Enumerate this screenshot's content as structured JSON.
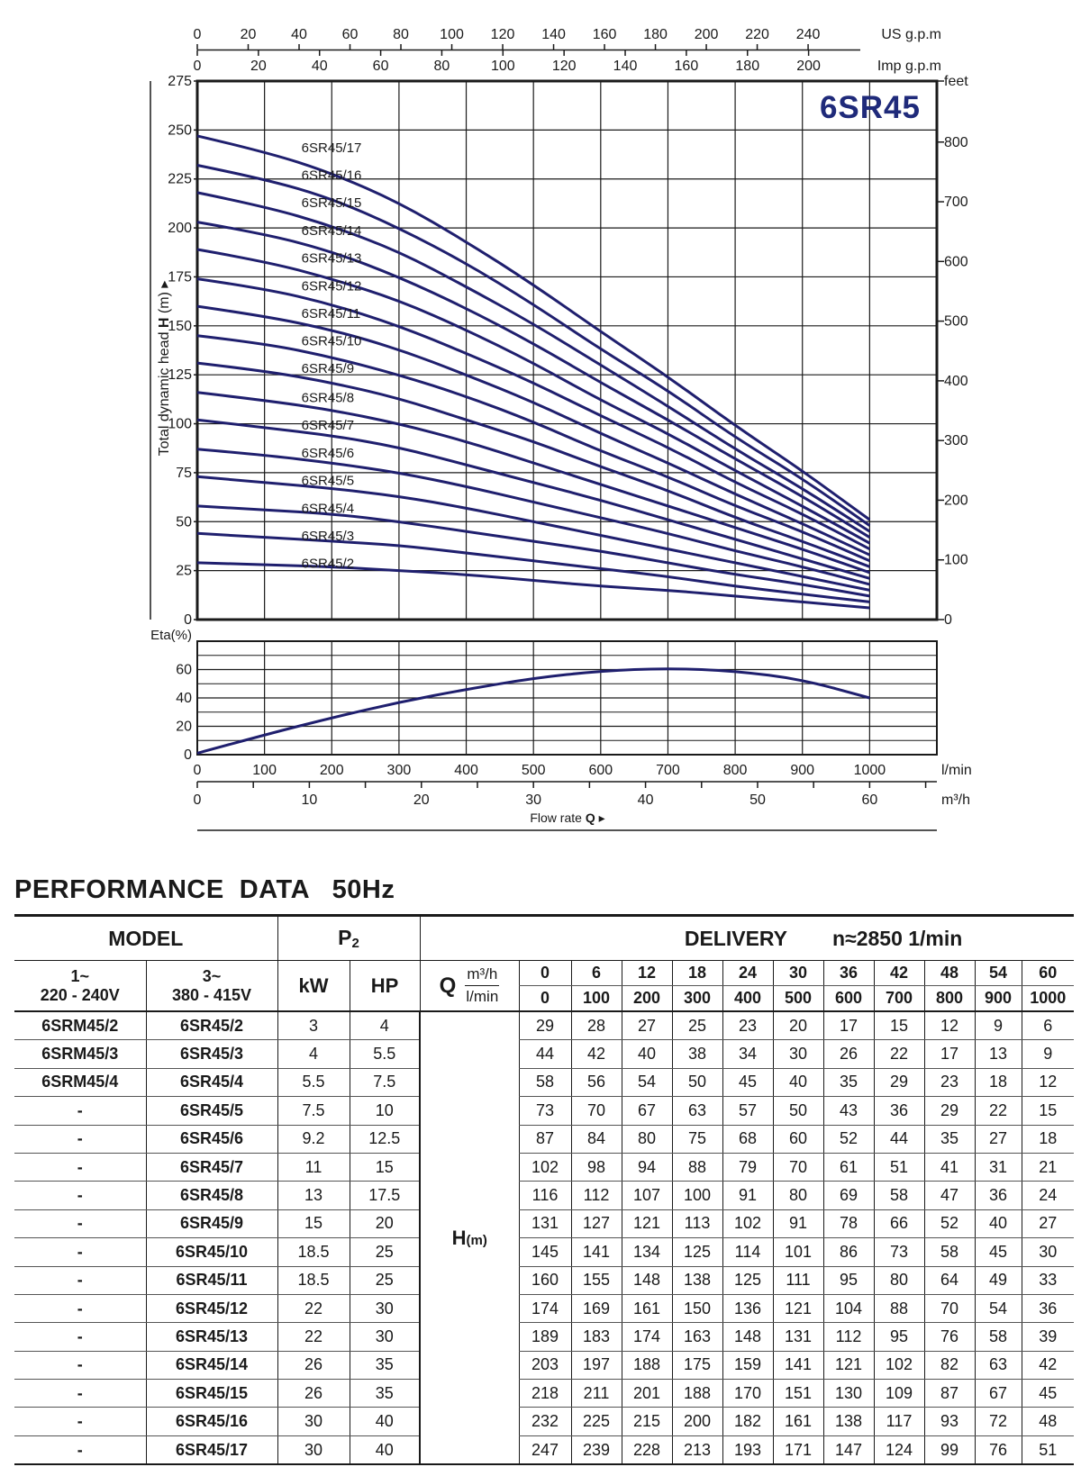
{
  "chart_data": {
    "type": "line",
    "title": "6SR45",
    "head_chart": {
      "ylabel_prefix": "Total dynamic head",
      "ylabel_symbol": "H",
      "ylabel_unit": "(m)",
      "y_ticks": [
        0,
        25,
        50,
        75,
        100,
        125,
        150,
        175,
        200,
        225,
        250,
        275
      ],
      "ylim": [
        0,
        275
      ],
      "right_unit": "feet",
      "right_ticks": [
        0,
        100,
        200,
        300,
        400,
        500,
        600,
        700,
        800
      ],
      "xlim_lmin": [
        0,
        1100
      ],
      "x_lmin": [
        0,
        100,
        200,
        300,
        400,
        500,
        600,
        700,
        800,
        900,
        1000
      ],
      "grid": true,
      "series": [
        {
          "name": "6SR45/2",
          "values": [
            29,
            28,
            27,
            25,
            23,
            20,
            17,
            15,
            12,
            9,
            6
          ]
        },
        {
          "name": "6SR45/3",
          "values": [
            44,
            42,
            40,
            38,
            34,
            30,
            26,
            22,
            17,
            13,
            9
          ]
        },
        {
          "name": "6SR45/4",
          "values": [
            58,
            56,
            54,
            50,
            45,
            40,
            35,
            29,
            23,
            18,
            12
          ]
        },
        {
          "name": "6SR45/5",
          "values": [
            73,
            70,
            67,
            63,
            57,
            50,
            43,
            36,
            29,
            22,
            15
          ]
        },
        {
          "name": "6SR45/6",
          "values": [
            87,
            84,
            80,
            75,
            68,
            60,
            52,
            44,
            35,
            27,
            18
          ]
        },
        {
          "name": "6SR45/7",
          "values": [
            102,
            98,
            94,
            88,
            79,
            70,
            61,
            51,
            41,
            31,
            21
          ]
        },
        {
          "name": "6SR45/8",
          "values": [
            116,
            112,
            107,
            100,
            91,
            80,
            69,
            58,
            47,
            36,
            24
          ]
        },
        {
          "name": "6SR45/9",
          "values": [
            131,
            127,
            121,
            113,
            102,
            91,
            78,
            66,
            52,
            40,
            27
          ]
        },
        {
          "name": "6SR45/10",
          "values": [
            145,
            141,
            134,
            125,
            114,
            101,
            86,
            73,
            58,
            45,
            30
          ]
        },
        {
          "name": "6SR45/11",
          "values": [
            160,
            155,
            148,
            138,
            125,
            111,
            95,
            80,
            64,
            49,
            33
          ]
        },
        {
          "name": "6SR45/12",
          "values": [
            174,
            169,
            161,
            150,
            136,
            121,
            104,
            88,
            70,
            54,
            36
          ]
        },
        {
          "name": "6SR45/13",
          "values": [
            189,
            183,
            174,
            163,
            148,
            131,
            112,
            95,
            76,
            58,
            39
          ]
        },
        {
          "name": "6SR45/14",
          "values": [
            203,
            197,
            188,
            175,
            159,
            141,
            121,
            102,
            82,
            63,
            42
          ]
        },
        {
          "name": "6SR45/15",
          "values": [
            218,
            211,
            201,
            188,
            170,
            151,
            130,
            109,
            87,
            67,
            45
          ]
        },
        {
          "name": "6SR45/16",
          "values": [
            232,
            225,
            215,
            200,
            182,
            161,
            138,
            117,
            93,
            72,
            48
          ]
        },
        {
          "name": "6SR45/17",
          "values": [
            247,
            239,
            228,
            213,
            193,
            171,
            147,
            124,
            99,
            76,
            51
          ]
        }
      ]
    },
    "eta_chart": {
      "ylabel": "Eta(%)",
      "y_ticks": [
        0,
        20,
        40,
        60
      ],
      "ylim": [
        0,
        80
      ],
      "series": [
        {
          "x": [
            0,
            100,
            200,
            300,
            400,
            500,
            600,
            700,
            800,
            900,
            1000
          ],
          "values": [
            1,
            14,
            26,
            37,
            46,
            54,
            59,
            61,
            59,
            53,
            40
          ]
        }
      ]
    },
    "top_axes": {
      "us_label": "US g.p.m",
      "us_ticks": [
        0,
        20,
        40,
        60,
        80,
        100,
        120,
        140,
        160,
        180,
        200,
        220,
        240
      ],
      "imp_label": "Imp g.p.m",
      "imp_ticks": [
        0,
        20,
        40,
        60,
        80,
        100,
        120,
        140,
        160,
        180,
        200
      ]
    },
    "bottom_axes": {
      "lmin_label": "l/min",
      "lmin_ticks": [
        0,
        100,
        200,
        300,
        400,
        500,
        600,
        700,
        800,
        900,
        1000
      ],
      "m3h_label": "m³/h",
      "m3h_ticks": [
        0,
        10,
        20,
        30,
        40,
        50,
        60
      ],
      "xlabel_text": "Flow rate",
      "xlabel_symbol": "Q"
    }
  },
  "table": {
    "title": "PERFORMANCE  DATA   50Hz",
    "model_header": "MODEL",
    "p2_header": "P",
    "p2_sub": "2",
    "delivery_header": "DELIVERY",
    "speed_header": "n≈2850 1/min",
    "col_1ph_line1": "1~",
    "col_1ph_line2": "220 - 240V",
    "col_3ph_line1": "3~",
    "col_3ph_line2": "380 - 415V",
    "kw_header": "kW",
    "hp_header": "HP",
    "q_symbol": "Q",
    "m3h_unit": "m³/h",
    "lmin_unit": "l/min",
    "q_m3h": [
      "0",
      "6",
      "12",
      "18",
      "24",
      "30",
      "36",
      "42",
      "48",
      "54",
      "60"
    ],
    "q_lmin": [
      "0",
      "100",
      "200",
      "300",
      "400",
      "500",
      "600",
      "700",
      "800",
      "900",
      "1000"
    ],
    "h_symbol": "H",
    "h_unit": "(m)",
    "rows": [
      {
        "m1": "6SRM45/2",
        "m3": "6SR45/2",
        "kw": "3",
        "hp": "4",
        "h": [
          "29",
          "28",
          "27",
          "25",
          "23",
          "20",
          "17",
          "15",
          "12",
          "9",
          "6"
        ]
      },
      {
        "m1": "6SRM45/3",
        "m3": "6SR45/3",
        "kw": "4",
        "hp": "5.5",
        "h": [
          "44",
          "42",
          "40",
          "38",
          "34",
          "30",
          "26",
          "22",
          "17",
          "13",
          "9"
        ]
      },
      {
        "m1": "6SRM45/4",
        "m3": "6SR45/4",
        "kw": "5.5",
        "hp": "7.5",
        "h": [
          "58",
          "56",
          "54",
          "50",
          "45",
          "40",
          "35",
          "29",
          "23",
          "18",
          "12"
        ]
      },
      {
        "m1": "-",
        "m3": "6SR45/5",
        "kw": "7.5",
        "hp": "10",
        "h": [
          "73",
          "70",
          "67",
          "63",
          "57",
          "50",
          "43",
          "36",
          "29",
          "22",
          "15"
        ]
      },
      {
        "m1": "-",
        "m3": "6SR45/6",
        "kw": "9.2",
        "hp": "12.5",
        "h": [
          "87",
          "84",
          "80",
          "75",
          "68",
          "60",
          "52",
          "44",
          "35",
          "27",
          "18"
        ]
      },
      {
        "m1": "-",
        "m3": "6SR45/7",
        "kw": "11",
        "hp": "15",
        "h": [
          "102",
          "98",
          "94",
          "88",
          "79",
          "70",
          "61",
          "51",
          "41",
          "31",
          "21"
        ]
      },
      {
        "m1": "-",
        "m3": "6SR45/8",
        "kw": "13",
        "hp": "17.5",
        "h": [
          "116",
          "112",
          "107",
          "100",
          "91",
          "80",
          "69",
          "58",
          "47",
          "36",
          "24"
        ]
      },
      {
        "m1": "-",
        "m3": "6SR45/9",
        "kw": "15",
        "hp": "20",
        "h": [
          "131",
          "127",
          "121",
          "113",
          "102",
          "91",
          "78",
          "66",
          "52",
          "40",
          "27"
        ]
      },
      {
        "m1": "-",
        "m3": "6SR45/10",
        "kw": "18.5",
        "hp": "25",
        "h": [
          "145",
          "141",
          "134",
          "125",
          "114",
          "101",
          "86",
          "73",
          "58",
          "45",
          "30"
        ]
      },
      {
        "m1": "-",
        "m3": "6SR45/11",
        "kw": "18.5",
        "hp": "25",
        "h": [
          "160",
          "155",
          "148",
          "138",
          "125",
          "111",
          "95",
          "80",
          "64",
          "49",
          "33"
        ]
      },
      {
        "m1": "-",
        "m3": "6SR45/12",
        "kw": "22",
        "hp": "30",
        "h": [
          "174",
          "169",
          "161",
          "150",
          "136",
          "121",
          "104",
          "88",
          "70",
          "54",
          "36"
        ]
      },
      {
        "m1": "-",
        "m3": "6SR45/13",
        "kw": "22",
        "hp": "30",
        "h": [
          "189",
          "183",
          "174",
          "163",
          "148",
          "131",
          "112",
          "95",
          "76",
          "58",
          "39"
        ]
      },
      {
        "m1": "-",
        "m3": "6SR45/14",
        "kw": "26",
        "hp": "35",
        "h": [
          "203",
          "197",
          "188",
          "175",
          "159",
          "141",
          "121",
          "102",
          "82",
          "63",
          "42"
        ]
      },
      {
        "m1": "-",
        "m3": "6SR45/15",
        "kw": "26",
        "hp": "35",
        "h": [
          "218",
          "211",
          "201",
          "188",
          "170",
          "151",
          "130",
          "109",
          "87",
          "67",
          "45"
        ]
      },
      {
        "m1": "-",
        "m3": "6SR45/16",
        "kw": "30",
        "hp": "40",
        "h": [
          "232",
          "225",
          "215",
          "200",
          "182",
          "161",
          "138",
          "117",
          "93",
          "72",
          "48"
        ]
      },
      {
        "m1": "-",
        "m3": "6SR45/17",
        "kw": "30",
        "hp": "40",
        "h": [
          "247",
          "239",
          "228",
          "213",
          "193",
          "171",
          "147",
          "124",
          "99",
          "76",
          "51"
        ]
      }
    ]
  },
  "colors": {
    "curve": "#1f1f6e",
    "frame": "#1a1a1a",
    "title": "#1f2a7a"
  }
}
